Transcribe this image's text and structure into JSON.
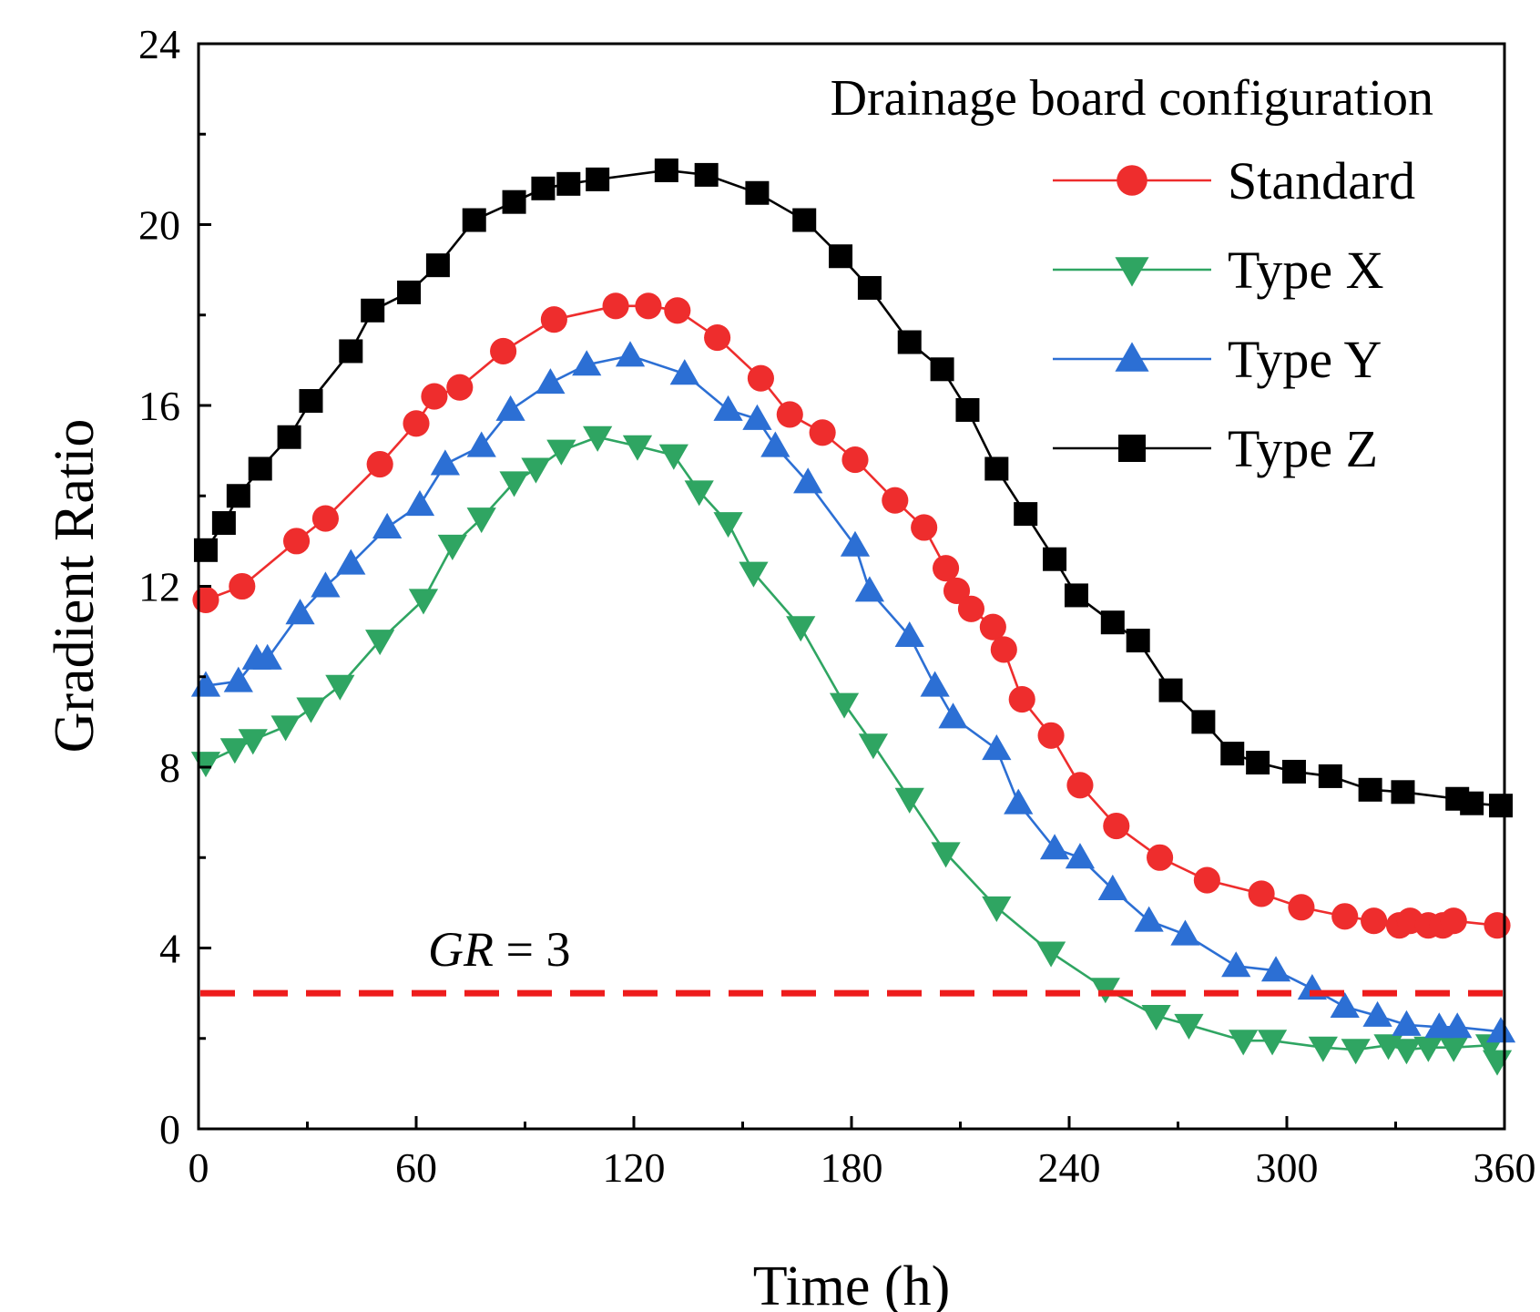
{
  "chart_data": {
    "type": "line",
    "title": "",
    "xlabel": "Time (h)",
    "ylabel": "Gradient Ratio",
    "xlim": [
      0,
      360
    ],
    "ylim": [
      0,
      24
    ],
    "xticks": [
      0,
      60,
      120,
      180,
      240,
      300,
      360
    ],
    "yticks": [
      0,
      4,
      8,
      12,
      16,
      20,
      24
    ],
    "grid": false,
    "legend": {
      "title": "Drainage board configuration",
      "position": "top-right"
    },
    "series": [
      {
        "name": "Standard",
        "color": "#ee2d2d",
        "marker": "circle",
        "points": [
          [
            2,
            11.7
          ],
          [
            12,
            12.0
          ],
          [
            27,
            13.0
          ],
          [
            35,
            13.5
          ],
          [
            50,
            14.7
          ],
          [
            60,
            15.6
          ],
          [
            65,
            16.2
          ],
          [
            72,
            16.4
          ],
          [
            84,
            17.2
          ],
          [
            98,
            17.9
          ],
          [
            115,
            18.2
          ],
          [
            124,
            18.2
          ],
          [
            132,
            18.1
          ],
          [
            143,
            17.5
          ],
          [
            155,
            16.6
          ],
          [
            163,
            15.8
          ],
          [
            172,
            15.4
          ],
          [
            181,
            14.8
          ],
          [
            192,
            13.9
          ],
          [
            200,
            13.3
          ],
          [
            206,
            12.4
          ],
          [
            209,
            11.9
          ],
          [
            213,
            11.5
          ],
          [
            219,
            11.1
          ],
          [
            222,
            10.6
          ],
          [
            227,
            9.5
          ],
          [
            235,
            8.7
          ],
          [
            243,
            7.6
          ],
          [
            253,
            6.7
          ],
          [
            265,
            6.0
          ],
          [
            278,
            5.5
          ],
          [
            293,
            5.2
          ],
          [
            304,
            4.9
          ],
          [
            316,
            4.7
          ],
          [
            324,
            4.6
          ],
          [
            331,
            4.5
          ],
          [
            334,
            4.6
          ],
          [
            339,
            4.5
          ],
          [
            343,
            4.5
          ],
          [
            346,
            4.6
          ],
          [
            358,
            4.5
          ]
        ]
      },
      {
        "name": "Type X",
        "color": "#2fa562",
        "marker": "triangle-down",
        "points": [
          [
            2,
            8.1
          ],
          [
            10,
            8.4
          ],
          [
            15,
            8.6
          ],
          [
            24,
            8.9
          ],
          [
            31,
            9.3
          ],
          [
            39,
            9.8
          ],
          [
            50,
            10.8
          ],
          [
            62,
            11.7
          ],
          [
            70,
            12.9
          ],
          [
            78,
            13.5
          ],
          [
            87,
            14.3
          ],
          [
            93,
            14.6
          ],
          [
            100,
            15.0
          ],
          [
            110,
            15.3
          ],
          [
            121,
            15.1
          ],
          [
            131,
            14.9
          ],
          [
            138,
            14.1
          ],
          [
            146,
            13.4
          ],
          [
            153,
            12.3
          ],
          [
            166,
            11.1
          ],
          [
            178,
            9.4
          ],
          [
            186,
            8.5
          ],
          [
            196,
            7.3
          ],
          [
            206,
            6.1
          ],
          [
            220,
            4.9
          ],
          [
            235,
            3.9
          ],
          [
            250,
            3.1
          ],
          [
            264,
            2.5
          ],
          [
            273,
            2.3
          ],
          [
            288,
            1.95
          ],
          [
            296,
            1.95
          ],
          [
            310,
            1.8
          ],
          [
            319,
            1.75
          ],
          [
            328,
            1.85
          ],
          [
            333,
            1.75
          ],
          [
            339,
            1.8
          ],
          [
            346,
            1.8
          ],
          [
            356,
            1.85
          ],
          [
            358,
            1.5
          ]
        ]
      },
      {
        "name": "Type Y",
        "color": "#2c6fd4",
        "marker": "triangle-up",
        "points": [
          [
            2,
            9.8
          ],
          [
            11,
            9.9
          ],
          [
            16,
            10.4
          ],
          [
            19,
            10.4
          ],
          [
            28,
            11.4
          ],
          [
            35,
            12.0
          ],
          [
            42,
            12.5
          ],
          [
            52,
            13.3
          ],
          [
            61,
            13.8
          ],
          [
            68,
            14.7
          ],
          [
            78,
            15.1
          ],
          [
            86,
            15.9
          ],
          [
            97,
            16.5
          ],
          [
            107,
            16.9
          ],
          [
            119,
            17.1
          ],
          [
            134,
            16.7
          ],
          [
            146,
            15.9
          ],
          [
            154,
            15.7
          ],
          [
            159,
            15.1
          ],
          [
            168,
            14.3
          ],
          [
            181,
            12.9
          ],
          [
            185,
            11.9
          ],
          [
            196,
            10.9
          ],
          [
            203,
            9.8
          ],
          [
            208,
            9.1
          ],
          [
            220,
            8.4
          ],
          [
            226,
            7.2
          ],
          [
            236,
            6.2
          ],
          [
            243,
            6.0
          ],
          [
            252,
            5.3
          ],
          [
            262,
            4.6
          ],
          [
            272,
            4.3
          ],
          [
            286,
            3.6
          ],
          [
            297,
            3.5
          ],
          [
            307,
            3.1
          ],
          [
            316,
            2.7
          ],
          [
            325,
            2.5
          ],
          [
            333,
            2.3
          ],
          [
            342,
            2.25
          ],
          [
            347,
            2.25
          ],
          [
            359,
            2.15
          ]
        ]
      },
      {
        "name": "Type Z",
        "color": "#000000",
        "marker": "square",
        "points": [
          [
            2,
            12.8
          ],
          [
            7,
            13.4
          ],
          [
            11,
            14.0
          ],
          [
            17,
            14.6
          ],
          [
            25,
            15.3
          ],
          [
            31,
            16.1
          ],
          [
            42,
            17.2
          ],
          [
            48,
            18.1
          ],
          [
            58,
            18.5
          ],
          [
            66,
            19.1
          ],
          [
            76,
            20.1
          ],
          [
            87,
            20.5
          ],
          [
            95,
            20.8
          ],
          [
            102,
            20.9
          ],
          [
            110,
            21.0
          ],
          [
            129,
            21.2
          ],
          [
            140,
            21.1
          ],
          [
            154,
            20.7
          ],
          [
            167,
            20.1
          ],
          [
            177,
            19.3
          ],
          [
            185,
            18.6
          ],
          [
            196,
            17.4
          ],
          [
            205,
            16.8
          ],
          [
            212,
            15.9
          ],
          [
            220,
            14.6
          ],
          [
            228,
            13.6
          ],
          [
            236,
            12.6
          ],
          [
            242,
            11.8
          ],
          [
            252,
            11.2
          ],
          [
            259,
            10.8
          ],
          [
            268,
            9.7
          ],
          [
            277,
            9.0
          ],
          [
            285,
            8.3
          ],
          [
            292,
            8.1
          ],
          [
            302,
            7.9
          ],
          [
            312,
            7.8
          ],
          [
            323,
            7.5
          ],
          [
            332,
            7.45
          ],
          [
            347,
            7.3
          ],
          [
            351,
            7.2
          ],
          [
            359,
            7.15
          ]
        ]
      }
    ],
    "reference_line": {
      "y": 3,
      "label_prefix": "GR",
      "label_suffix": " = 3",
      "color": "#ee1c1c",
      "style": "dashed"
    }
  }
}
